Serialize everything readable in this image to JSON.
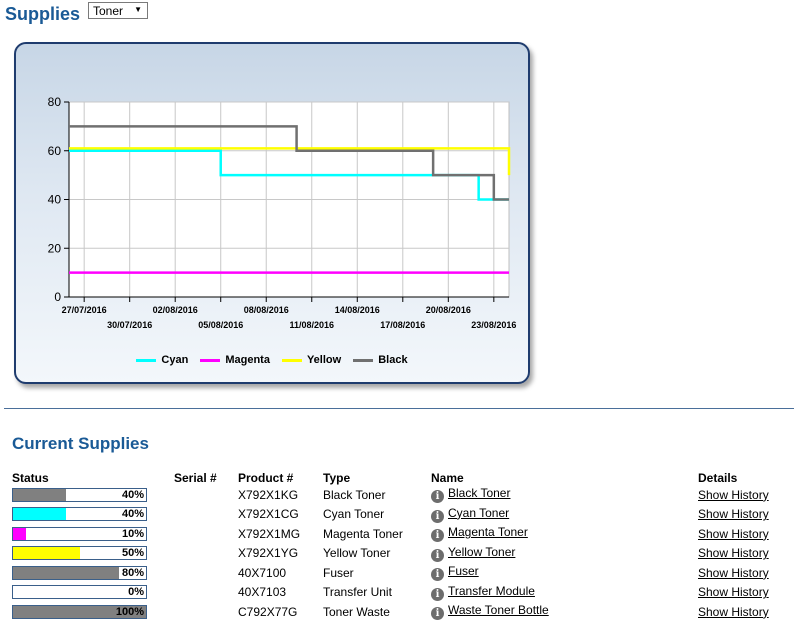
{
  "header": {
    "title": "Supplies",
    "filter_value": "Toner"
  },
  "chart_data": {
    "type": "line",
    "step": true,
    "x": [
      "27/07/2016",
      "30/07/2016",
      "02/08/2016",
      "05/08/2016",
      "08/08/2016",
      "11/08/2016",
      "14/08/2016",
      "17/08/2016",
      "20/08/2016",
      "23/08/2016"
    ],
    "x_start": "26/07/2016",
    "x_end": "24/08/2016",
    "ylim": [
      0,
      80
    ],
    "yticks": [
      0,
      20,
      40,
      60,
      80
    ],
    "grid": true,
    "legend_position": "bottom",
    "series": [
      {
        "name": "Cyan",
        "color": "#00ffff",
        "points": [
          [
            "26/07/2016",
            60
          ],
          [
            "05/08/2016",
            50
          ],
          [
            "22/08/2016",
            40
          ],
          [
            "24/08/2016",
            40
          ]
        ]
      },
      {
        "name": "Magenta",
        "color": "#ff00ff",
        "points": [
          [
            "26/07/2016",
            10
          ],
          [
            "24/08/2016",
            10
          ]
        ]
      },
      {
        "name": "Yellow",
        "color": "#ffff00",
        "points": [
          [
            "26/07/2016",
            61
          ],
          [
            "24/08/2016",
            50
          ]
        ]
      },
      {
        "name": "Black",
        "color": "#707070",
        "points": [
          [
            "26/07/2016",
            70
          ],
          [
            "10/08/2016",
            60
          ],
          [
            "19/08/2016",
            50
          ],
          [
            "23/08/2016",
            40
          ],
          [
            "24/08/2016",
            40
          ]
        ]
      }
    ]
  },
  "supplies": {
    "title": "Current Supplies",
    "columns": {
      "status": "Status",
      "serial": "Serial #",
      "product": "Product #",
      "type": "Type",
      "name": "Name",
      "details": "Details"
    },
    "rows": [
      {
        "percent": 40,
        "pct_label": "40%",
        "fill": "#808080",
        "serial": "",
        "product": "X792X1KG",
        "type": "Black Toner",
        "name": "Black Toner",
        "details": "Show History"
      },
      {
        "percent": 40,
        "pct_label": "40%",
        "fill": "#00ffff",
        "serial": "",
        "product": "X792X1CG",
        "type": "Cyan Toner",
        "name": "Cyan Toner",
        "details": "Show History"
      },
      {
        "percent": 10,
        "pct_label": "10%",
        "fill": "#ff00ff",
        "serial": "",
        "product": "X792X1MG",
        "type": "Magenta Toner",
        "name": "Magenta Toner",
        "details": "Show History"
      },
      {
        "percent": 50,
        "pct_label": "50%",
        "fill": "#ffff00",
        "serial": "",
        "product": "X792X1YG",
        "type": "Yellow Toner",
        "name": "Yellow Toner",
        "details": "Show History"
      },
      {
        "percent": 80,
        "pct_label": "80%",
        "fill": "#808080",
        "serial": "",
        "product": "40X7100",
        "type": "Fuser",
        "name": "Fuser",
        "details": "Show History"
      },
      {
        "percent": 0,
        "pct_label": "0%",
        "fill": "#808080",
        "serial": "",
        "product": "40X7103",
        "type": "Transfer Unit",
        "name": "Transfer Module",
        "details": "Show History"
      },
      {
        "percent": 100,
        "pct_label": "100%",
        "fill": "#808080",
        "serial": "",
        "product": "C792X77G",
        "type": "Toner Waste",
        "name": "Waste Toner Bottle",
        "details": "Show History"
      }
    ]
  }
}
